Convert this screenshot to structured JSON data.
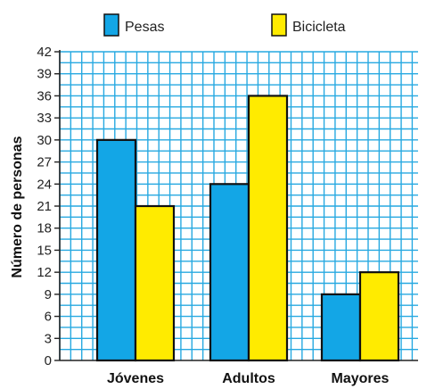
{
  "chart_data": {
    "type": "bar",
    "categories": [
      "Jóvenes",
      "Adultos",
      "Mayores"
    ],
    "series": [
      {
        "name": "Pesas",
        "color": "#13a6e6",
        "values": [
          30,
          24,
          9
        ]
      },
      {
        "name": "Bicicleta",
        "color": "#ffeb00",
        "values": [
          21,
          36,
          12
        ]
      }
    ],
    "ylabel": "Número de personas",
    "xlabel": "",
    "ylim": [
      0,
      42
    ],
    "yticks": [
      0,
      3,
      6,
      9,
      12,
      15,
      18,
      21,
      24,
      27,
      30,
      33,
      36,
      39,
      42
    ],
    "grid": true,
    "grid_color": "#27a9e1",
    "legend_placement": "top"
  }
}
